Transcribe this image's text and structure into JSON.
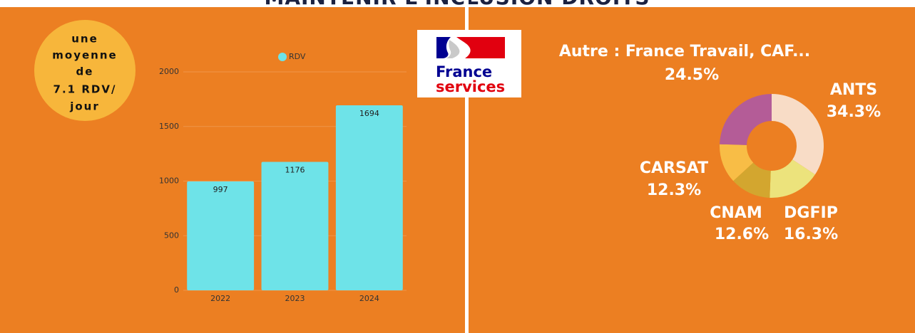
{
  "title": "MAINTENIR L'INCLUSION DROITS",
  "badge": {
    "lines": [
      "une",
      "moyenne",
      "de",
      "7.1 RDV/",
      "jour"
    ]
  },
  "logo": {
    "line1": "France",
    "line2": "services"
  },
  "chart_data": [
    {
      "type": "bar",
      "categories": [
        "2022",
        "2023",
        "2024"
      ],
      "series": [
        {
          "name": "RDV",
          "color": "#6ee3e8",
          "values": [
            997,
            1176,
            1694
          ]
        }
      ],
      "ylim": [
        0,
        2000
      ],
      "yticks": [
        0,
        500,
        1000,
        1500,
        2000
      ],
      "grid": true,
      "legend": "top"
    },
    {
      "type": "pie",
      "donut": true,
      "categories": [
        "ANTS",
        "DGFIP",
        "CNAM",
        "CARSAT",
        "Autre : France Travail, CAF..."
      ],
      "values": [
        34.3,
        16.3,
        12.6,
        12.3,
        24.5
      ],
      "value_labels": [
        "34.3%",
        "16.3%",
        "12.6%",
        "12.3%",
        "24.5%"
      ],
      "colors": [
        "#f8dcc6",
        "#ece37c",
        "#d3a62f",
        "#f8bd46",
        "#b45c97"
      ]
    }
  ]
}
